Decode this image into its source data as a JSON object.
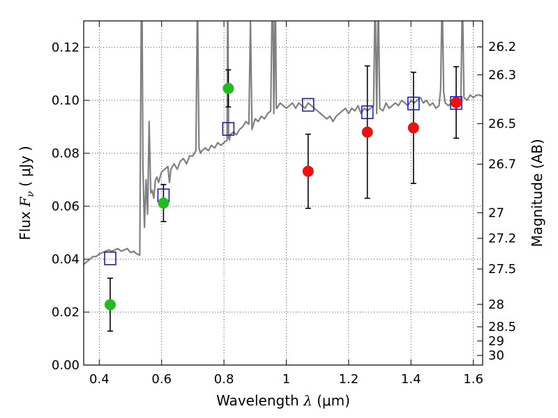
{
  "chart_data": {
    "type": "scatter",
    "xlabel_prefix": "Wavelength  ",
    "xlabel_lambda": "λ",
    "xlabel_units": " (μm)",
    "ylabel_prefix": "Flux  ",
    "ylabel_symbol": "F",
    "ylabel_sub": "ν",
    "ylabel_units": "  ( μJy )",
    "y2label": "Magnitude (AB)",
    "xlim": [
      0.35,
      1.63
    ],
    "ylim": [
      0.0,
      0.13
    ],
    "grid": true,
    "xticks": [
      {
        "value": 0.4,
        "label": "0.4"
      },
      {
        "value": 0.6,
        "label": "0.6"
      },
      {
        "value": 0.8,
        "label": "0.8"
      },
      {
        "value": 1.0,
        "label": "1"
      },
      {
        "value": 1.2,
        "label": "1.2"
      },
      {
        "value": 1.4,
        "label": "1.4"
      },
      {
        "value": 1.6,
        "label": "1.6"
      }
    ],
    "yticks": [
      {
        "value": 0.0,
        "label": "0.00"
      },
      {
        "value": 0.02,
        "label": "0.02"
      },
      {
        "value": 0.04,
        "label": "0.04"
      },
      {
        "value": 0.06,
        "label": "0.06"
      },
      {
        "value": 0.08,
        "label": "0.08"
      },
      {
        "value": 0.1,
        "label": "0.10"
      },
      {
        "value": 0.12,
        "label": "0.12"
      }
    ],
    "y2ticks": [
      {
        "mag": 26.2,
        "label": "26.2"
      },
      {
        "mag": 26.3,
        "label": "26.3"
      },
      {
        "mag": 26.5,
        "label": "26.5"
      },
      {
        "mag": 26.7,
        "label": "26.7"
      },
      {
        "mag": 27.0,
        "label": "27"
      },
      {
        "mag": 27.2,
        "label": "27.2"
      },
      {
        "mag": 27.5,
        "label": "27.5"
      },
      {
        "mag": 28.0,
        "label": "28"
      },
      {
        "mag": 28.5,
        "label": "28.5"
      },
      {
        "mag": 29.0,
        "label": "29"
      },
      {
        "mag": 30.0,
        "label": "30"
      }
    ],
    "series": [
      {
        "name": "Green photometry",
        "marker": "circle",
        "color": "#22bb22",
        "points": [
          {
            "x": 0.435,
            "y": 0.0228,
            "err": 0.01
          },
          {
            "x": 0.606,
            "y": 0.0612,
            "err": 0.007
          },
          {
            "x": 0.814,
            "y": 0.1045,
            "err": 0.007
          }
        ]
      },
      {
        "name": "Red photometry",
        "marker": "circle",
        "color": "#ee1111",
        "points": [
          {
            "x": 1.07,
            "y": 0.0732,
            "err": 0.014
          },
          {
            "x": 1.26,
            "y": 0.088,
            "err": 0.025
          },
          {
            "x": 1.408,
            "y": 0.0896,
            "err": 0.021
          },
          {
            "x": 1.545,
            "y": 0.0992,
            "err": 0.0135
          }
        ]
      },
      {
        "name": "Model band fluxes",
        "marker": "square",
        "color": "#1a1acc",
        "points": [
          {
            "x": 0.435,
            "y": 0.0403
          },
          {
            "x": 0.606,
            "y": 0.0641
          },
          {
            "x": 0.814,
            "y": 0.0892
          },
          {
            "x": 1.07,
            "y": 0.0983
          },
          {
            "x": 1.26,
            "y": 0.0955
          },
          {
            "x": 1.408,
            "y": 0.0988
          },
          {
            "x": 1.545,
            "y": 0.099
          }
        ]
      }
    ],
    "model_spectrum": {
      "name": "Model SED",
      "color": "#808080",
      "x": [
        0.35,
        0.36,
        0.37,
        0.38,
        0.39,
        0.4,
        0.41,
        0.42,
        0.43,
        0.44,
        0.45,
        0.46,
        0.47,
        0.48,
        0.49,
        0.5,
        0.51,
        0.52,
        0.53,
        0.535,
        0.537,
        0.54,
        0.545,
        0.55,
        0.555,
        0.56,
        0.565,
        0.57,
        0.575,
        0.58,
        0.585,
        0.59,
        0.6,
        0.61,
        0.62,
        0.625,
        0.63,
        0.64,
        0.65,
        0.66,
        0.67,
        0.68,
        0.69,
        0.7,
        0.71,
        0.715,
        0.72,
        0.725,
        0.73,
        0.74,
        0.75,
        0.76,
        0.77,
        0.78,
        0.79,
        0.8,
        0.81,
        0.812,
        0.815,
        0.818,
        0.82,
        0.83,
        0.84,
        0.85,
        0.86,
        0.87,
        0.88,
        0.885,
        0.89,
        0.895,
        0.9,
        0.91,
        0.92,
        0.93,
        0.94,
        0.95,
        0.955,
        0.957,
        0.96,
        0.965,
        0.968,
        0.97,
        0.98,
        0.99,
        1.0,
        1.01,
        1.02,
        1.03,
        1.04,
        1.05,
        1.06,
        1.07,
        1.08,
        1.09,
        1.1,
        1.11,
        1.12,
        1.13,
        1.14,
        1.15,
        1.16,
        1.17,
        1.18,
        1.19,
        1.2,
        1.21,
        1.22,
        1.23,
        1.24,
        1.25,
        1.26,
        1.27,
        1.28,
        1.285,
        1.29,
        1.295,
        1.3,
        1.31,
        1.32,
        1.33,
        1.34,
        1.35,
        1.36,
        1.37,
        1.38,
        1.39,
        1.4,
        1.41,
        1.42,
        1.43,
        1.44,
        1.45,
        1.46,
        1.47,
        1.48,
        1.49,
        1.495,
        1.5,
        1.505,
        1.51,
        1.52,
        1.53,
        1.54,
        1.55,
        1.56,
        1.565,
        1.57,
        1.58,
        1.59,
        1.6,
        1.61,
        1.62,
        1.63
      ],
      "y": [
        0.038,
        0.039,
        0.04,
        0.041,
        0.041,
        0.042,
        0.0425,
        0.043,
        0.0435,
        0.043,
        0.0435,
        0.044,
        0.043,
        0.0435,
        0.044,
        0.0425,
        0.043,
        0.042,
        0.0415,
        0.14,
        0.14,
        0.075,
        0.052,
        0.07,
        0.057,
        0.092,
        0.065,
        0.066,
        0.063,
        0.07,
        0.071,
        0.069,
        0.073,
        0.074,
        0.075,
        0.069,
        0.074,
        0.076,
        0.074,
        0.077,
        0.078,
        0.076,
        0.079,
        0.079,
        0.081,
        0.14,
        0.082,
        0.08,
        0.081,
        0.082,
        0.081,
        0.083,
        0.082,
        0.084,
        0.083,
        0.084,
        0.085,
        0.14,
        0.086,
        0.085,
        0.087,
        0.088,
        0.087,
        0.089,
        0.09,
        0.092,
        0.091,
        0.13,
        0.089,
        0.091,
        0.093,
        0.092,
        0.094,
        0.093,
        0.095,
        0.096,
        0.14,
        0.14,
        0.095,
        0.14,
        0.097,
        0.097,
        0.099,
        0.098,
        0.097,
        0.098,
        0.099,
        0.097,
        0.099,
        0.098,
        0.097,
        0.099,
        0.098,
        0.097,
        0.096,
        0.095,
        0.094,
        0.093,
        0.094,
        0.092,
        0.094,
        0.095,
        0.096,
        0.097,
        0.095,
        0.097,
        0.096,
        0.098,
        0.095,
        0.097,
        0.096,
        0.097,
        0.098,
        0.14,
        0.095,
        0.14,
        0.097,
        0.096,
        0.099,
        0.097,
        0.098,
        0.099,
        0.098,
        0.1,
        0.099,
        0.098,
        0.1,
        0.099,
        0.1,
        0.101,
        0.099,
        0.1,
        0.098,
        0.099,
        0.097,
        0.098,
        0.104,
        0.14,
        0.103,
        0.099,
        0.098,
        0.099,
        0.1,
        0.099,
        0.1,
        0.14,
        0.101,
        0.1,
        0.102,
        0.101,
        0.102,
        0.102,
        0.1015
      ]
    }
  }
}
